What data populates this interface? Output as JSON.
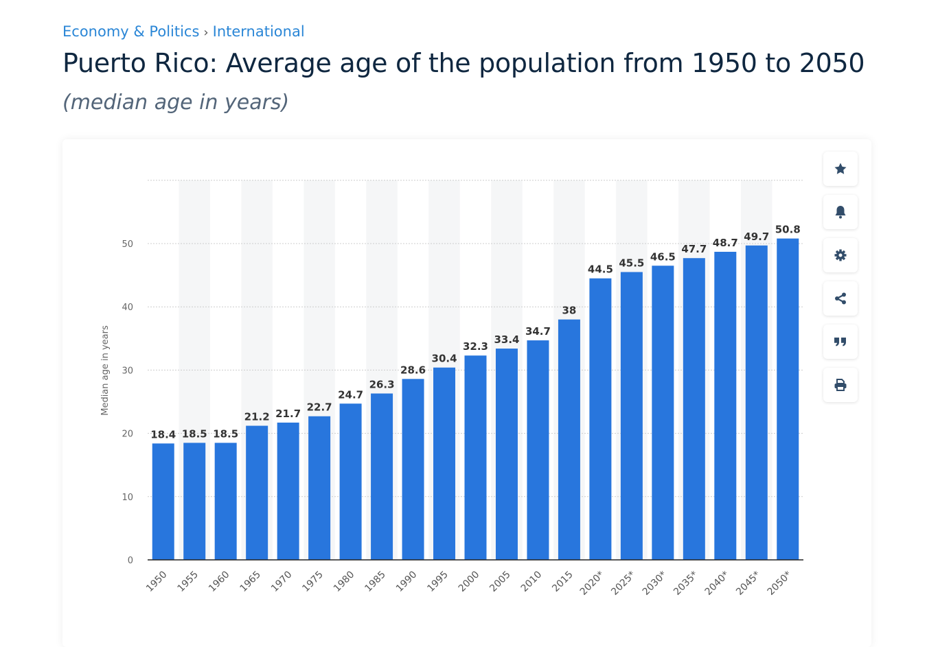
{
  "breadcrumb": {
    "items": [
      "Economy & Politics",
      "International"
    ],
    "separator": "›"
  },
  "title": "Puerto Rico: Average age of the population from 1950 to 2050",
  "subtitle": "(median age in years)",
  "toolbar": [
    "star-icon",
    "bell-icon",
    "gear-icon",
    "share-icon",
    "quote-icon",
    "print-icon"
  ],
  "colors": {
    "bar": "#2876dd",
    "link": "#2a86d6",
    "title": "#0f2740",
    "icon": "#324d6a"
  },
  "chart_data": {
    "type": "bar",
    "title": "Puerto Rico: Average age of the population from 1950 to 2050",
    "xlabel": "",
    "ylabel": "Median age in years",
    "ylim": [
      0,
      60
    ],
    "yticks": [
      0,
      10,
      20,
      30,
      40,
      50
    ],
    "grid": true,
    "categories": [
      "1950",
      "1955",
      "1960",
      "1965",
      "1970",
      "1975",
      "1980",
      "1985",
      "1990",
      "1995",
      "2000",
      "2005",
      "2010",
      "2015",
      "2020*",
      "2025*",
      "2030*",
      "2035*",
      "2040*",
      "2045*",
      "2050*"
    ],
    "values": [
      18.4,
      18.5,
      18.5,
      21.2,
      21.7,
      22.7,
      24.7,
      26.3,
      28.6,
      30.4,
      32.3,
      33.4,
      34.7,
      38,
      44.5,
      45.5,
      46.5,
      47.7,
      48.7,
      49.7,
      50.8
    ]
  }
}
